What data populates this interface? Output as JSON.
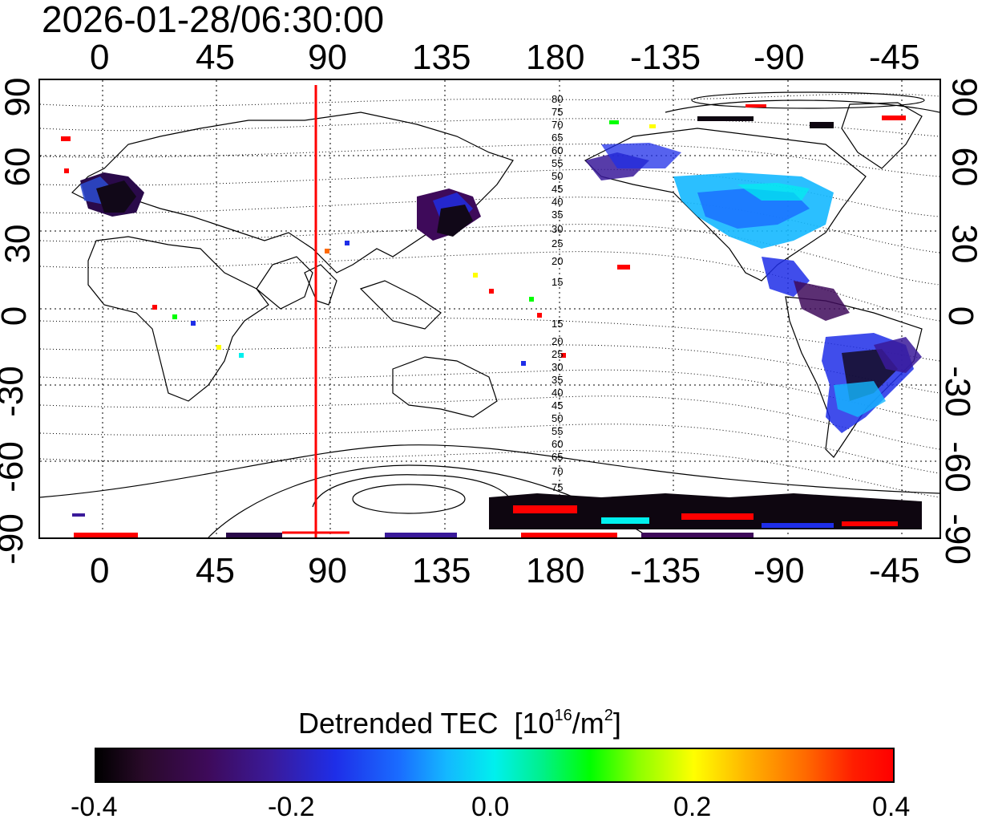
{
  "title": "2026-01-28/06:30:00",
  "map": {
    "x_tick_labels": [
      "0",
      "45",
      "90",
      "135",
      "180",
      "-135",
      "-90",
      "-45"
    ],
    "y_tick_labels": [
      "90",
      "60",
      "30",
      "0",
      "-30",
      "-60",
      "-90"
    ],
    "contour_labels_north": [
      "80",
      "75",
      "70",
      "65",
      "60",
      "55",
      "50",
      "45",
      "40",
      "35",
      "30",
      "25",
      "20",
      "15"
    ],
    "contour_labels_south": [
      "15",
      "20",
      "25",
      "30",
      "35",
      "40",
      "45",
      "50",
      "55",
      "60",
      "65",
      "70",
      "75"
    ],
    "marker_longitude": 84,
    "marker_color": "#ff0000"
  },
  "colorbar": {
    "title": "Detrended TEC",
    "unit_prefix": "[10",
    "unit_exp": "16",
    "unit_mid": "/m",
    "unit_exp2": "2",
    "unit_suffix": "]",
    "tick_labels": [
      "-0.4",
      "-0.2",
      "0.0",
      "0.2",
      "0.4"
    ],
    "range": [
      -0.4,
      0.4
    ]
  }
}
